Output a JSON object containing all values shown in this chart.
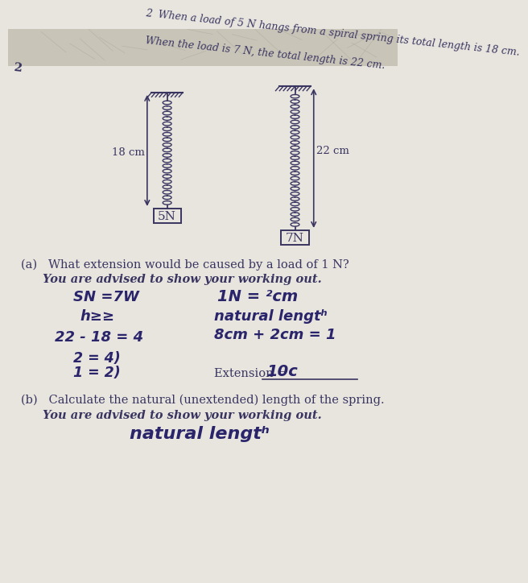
{
  "page_bg": "#e8e5df",
  "top_bg": "#c8c4b8",
  "title_line1": "2  When a load of 5 N hangs from a spiral spring its total length is 18 cm.",
  "title_line2": "When the load is 7 N, the total length is 22 cm.",
  "spring1_label": "18 cm",
  "spring1_load": "5N",
  "spring2_label": "22 cm",
  "spring2_load": "7N",
  "question_a": "(a)   What extension would be caused by a load of 1 N?",
  "advised_a": "You are advised to show your working out.",
  "workinga_left1": "SN = 7W",
  "workinga_left2": "h≥≥",
  "workinga_left3": "22 - 18 = 4",
  "workinga_left4": "2 = 4)",
  "workinga_left5": "1 = 2)",
  "workinga_right1": "1N = ²cm",
  "workinga_right2": "natural length",
  "workinga_right3": "8cm + 2cm = 1",
  "extension_label": "Extension = ",
  "extension_value": "10c",
  "question_b": "(b)   Calculate the natural (unextended) length of the spring.",
  "advised_b": "You are advised to show your working out.",
  "workingb": "natural lengt",
  "text_color": "#3a3560",
  "handwriting_color": "#2a256a",
  "spring_color": "#4a4560",
  "line_color": "#3a3560"
}
